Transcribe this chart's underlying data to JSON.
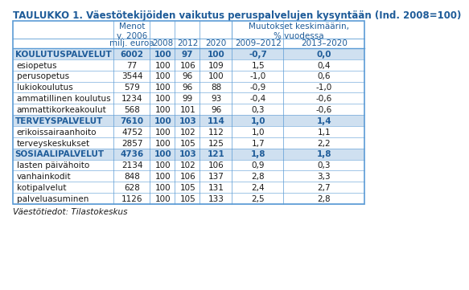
{
  "title": "TAULUKKO 1. Väestötekijöiden vaikutus peruspalvelujen kysyntään (Ind. 2008=100)",
  "footer": "Väestötiedot: Tilastokeskus",
  "col_headers_line2": [
    "milj. euroa",
    "2008",
    "2012",
    "2020",
    "2009–2012",
    "2013–2020"
  ],
  "rows": [
    {
      "label": "KOULUTUSPALVELUT",
      "bold": true,
      "shaded": true,
      "indent": false,
      "values": [
        "6002",
        "100",
        "97",
        "100",
        "-0,7",
        "0,0"
      ]
    },
    {
      "label": "esiopetus",
      "bold": false,
      "shaded": false,
      "indent": true,
      "values": [
        "77",
        "100",
        "106",
        "109",
        "1,5",
        "0,4"
      ]
    },
    {
      "label": "perusopetus",
      "bold": false,
      "shaded": false,
      "indent": true,
      "values": [
        "3544",
        "100",
        "96",
        "100",
        "-1,0",
        "0,6"
      ]
    },
    {
      "label": "lukiokoulutus",
      "bold": false,
      "shaded": false,
      "indent": true,
      "values": [
        "579",
        "100",
        "96",
        "88",
        "-0,9",
        "-1,0"
      ]
    },
    {
      "label": "ammatillinen koulutus",
      "bold": false,
      "shaded": false,
      "indent": true,
      "values": [
        "1234",
        "100",
        "99",
        "93",
        "-0,4",
        "-0,6"
      ]
    },
    {
      "label": "ammattikorkeakoulut",
      "bold": false,
      "shaded": false,
      "indent": true,
      "values": [
        "568",
        "100",
        "101",
        "96",
        "0,3",
        "-0,6"
      ]
    },
    {
      "label": "TERVEYSPALVELUT",
      "bold": true,
      "shaded": true,
      "indent": false,
      "values": [
        "7610",
        "100",
        "103",
        "114",
        "1,0",
        "1,4"
      ]
    },
    {
      "label": "erikoissairaanhoito",
      "bold": false,
      "shaded": false,
      "indent": true,
      "values": [
        "4752",
        "100",
        "102",
        "112",
        "1,0",
        "1,1"
      ]
    },
    {
      "label": "terveyskeskukset",
      "bold": false,
      "shaded": false,
      "indent": true,
      "values": [
        "2857",
        "100",
        "105",
        "125",
        "1,7",
        "2,2"
      ]
    },
    {
      "label": "SOSIAALIPALVELUT",
      "bold": true,
      "shaded": true,
      "indent": false,
      "values": [
        "4736",
        "100",
        "103",
        "121",
        "1,8",
        "1,8"
      ]
    },
    {
      "label": "lasten päivähoito",
      "bold": false,
      "shaded": false,
      "indent": true,
      "values": [
        "2134",
        "100",
        "102",
        "106",
        "0,9",
        "0,3"
      ]
    },
    {
      "label": "vanhainkodit",
      "bold": false,
      "shaded": false,
      "indent": true,
      "values": [
        "848",
        "100",
        "106",
        "137",
        "2,8",
        "3,3"
      ]
    },
    {
      "label": "kotipalvelut",
      "bold": false,
      "shaded": false,
      "indent": true,
      "values": [
        "628",
        "100",
        "105",
        "131",
        "2,4",
        "2,7"
      ]
    },
    {
      "label": "palveluasuminen",
      "bold": false,
      "shaded": false,
      "indent": true,
      "values": [
        "1126",
        "100",
        "105",
        "133",
        "2,5",
        "2,8"
      ]
    }
  ],
  "title_color": "#1f5c99",
  "header_text_color": "#1f5c99",
  "body_text_color": "#1a1a1a",
  "bold_row_text_color": "#1f5c99",
  "shaded_color": "#cfe0f0",
  "border_color": "#5b9bd5",
  "bg_color": "#ffffff"
}
